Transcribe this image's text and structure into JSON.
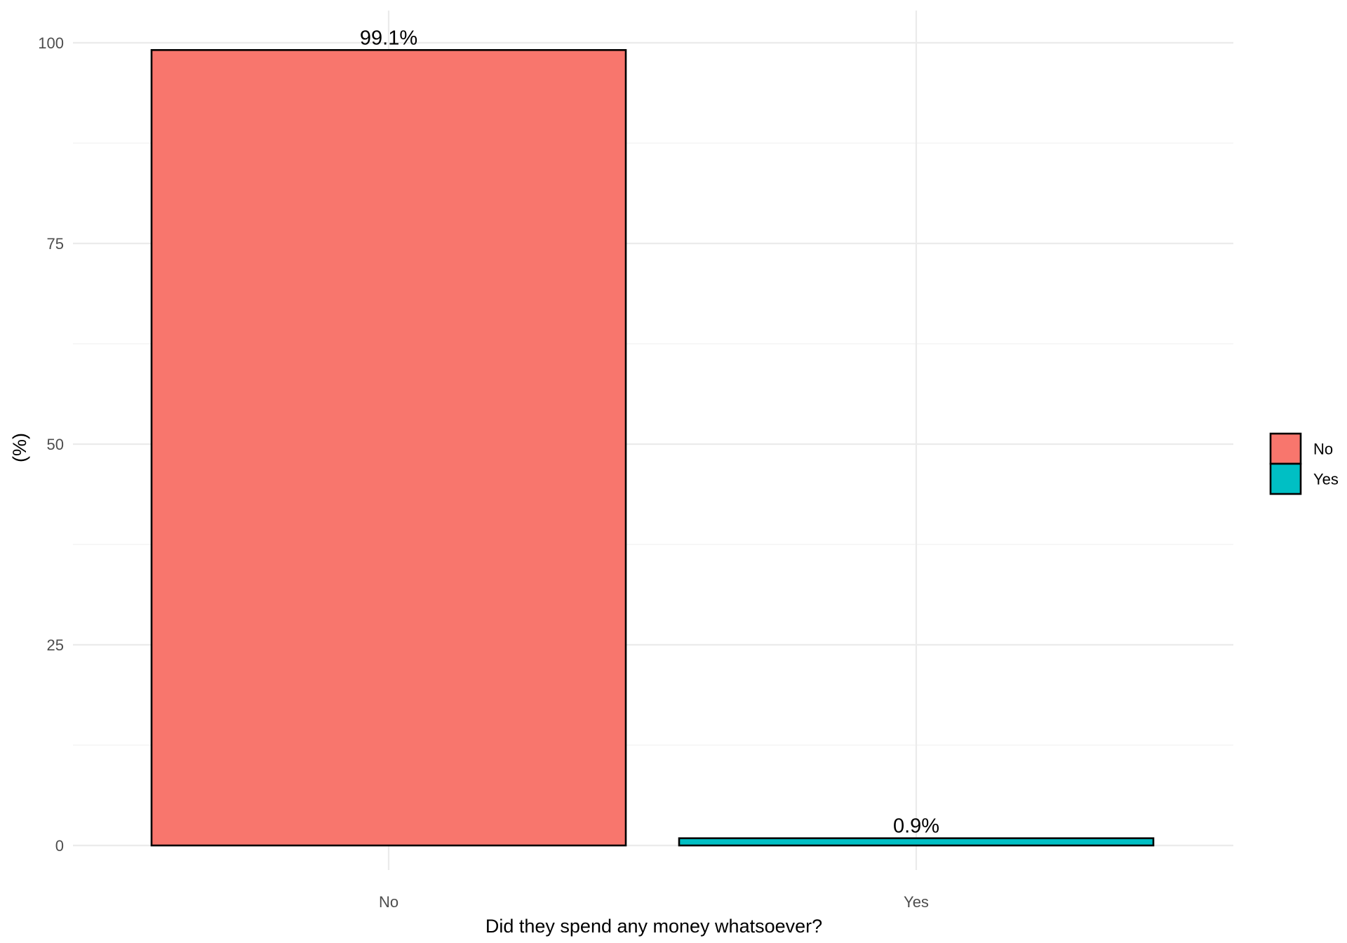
{
  "chart_data": {
    "type": "bar",
    "categories": [
      "No",
      "Yes"
    ],
    "values": [
      99.1,
      0.9
    ],
    "data_labels": [
      "99.1%",
      "0.9%"
    ],
    "colors": [
      "#F8766D",
      "#00BFC4"
    ],
    "title": "",
    "xlabel": "Did they spend any money whatsoever?",
    "ylabel": "(%)",
    "ylim": [
      0,
      100
    ],
    "yticks": [
      0,
      25,
      50,
      75,
      100
    ],
    "grid": true,
    "legend": {
      "placement": "right",
      "entries": [
        "No",
        "Yes"
      ]
    }
  }
}
